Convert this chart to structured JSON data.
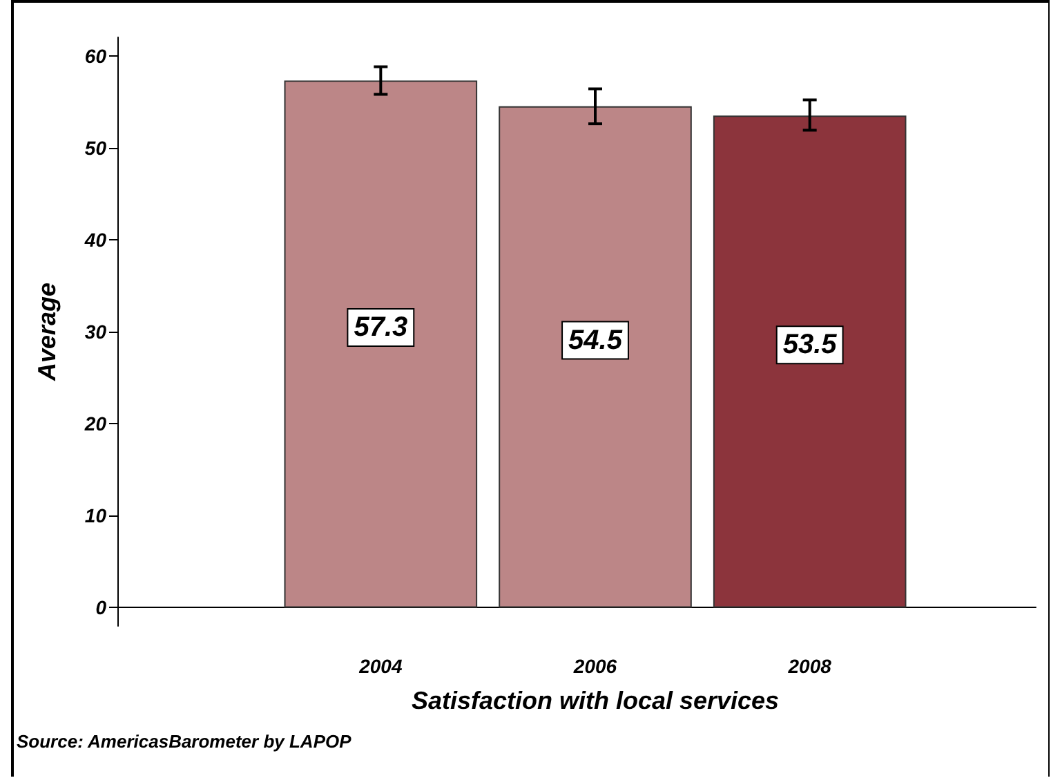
{
  "chart_data": {
    "type": "bar",
    "xlabel": "Satisfaction with local services",
    "ylabel": "Average",
    "categories": [
      "2004",
      "2006",
      "2008"
    ],
    "values": [
      57.3,
      54.5,
      53.5
    ],
    "colors": [
      "#bc8687",
      "#bc8687",
      "#8c343c"
    ],
    "errors": [
      [
        55.8,
        58.8
      ],
      [
        52.6,
        56.4
      ],
      [
        51.9,
        55.2
      ]
    ],
    "ylim": [
      -2,
      62
    ],
    "yticks": [
      0,
      10,
      20,
      30,
      40,
      50,
      60
    ],
    "data_labels": true,
    "grid": false,
    "annotations": [
      "Source: AmericasBarometer by LAPOP"
    ]
  }
}
